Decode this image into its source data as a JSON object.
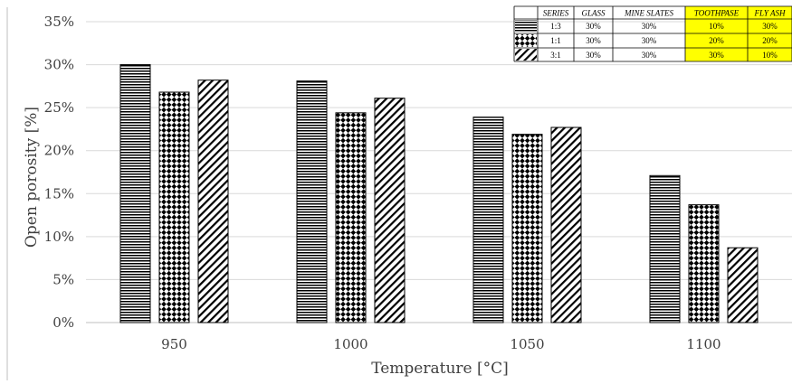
{
  "chart_data": {
    "type": "bar",
    "xlabel": "Temperature  [°C]",
    "ylabel": "Open porosity [%]",
    "ylim": [
      0,
      35
    ],
    "yticks": [
      "0%",
      "5%",
      "10%",
      "15%",
      "20%",
      "25%",
      "30%",
      "35%"
    ],
    "categories": [
      "950",
      "1000",
      "1050",
      "1100"
    ],
    "grid": true,
    "series": [
      {
        "name": "1:3",
        "pattern": "horizontal-lines",
        "values": [
          30.0,
          28.1,
          23.9,
          17.1
        ]
      },
      {
        "name": "1:1",
        "pattern": "diamond-checker",
        "values": [
          26.8,
          24.4,
          21.9,
          13.7
        ]
      },
      {
        "name": "3:1",
        "pattern": "diagonal-lines",
        "values": [
          28.2,
          26.1,
          22.7,
          8.7
        ]
      }
    ],
    "legend": {
      "placement": "top-right",
      "headers": [
        "SERIES",
        "GLASS",
        "MINE SLATES",
        "TOOTHPASE",
        "FLY ASH"
      ],
      "highlight_columns": [
        3,
        4
      ],
      "highlight_color": "#ffff00",
      "rows": [
        [
          "1:3",
          "30%",
          "30%",
          "10%",
          "30%"
        ],
        [
          "1:1",
          "30%",
          "30%",
          "20%",
          "20%"
        ],
        [
          "3:1",
          "30%",
          "30%",
          "30%",
          "10%"
        ]
      ]
    },
    "colors": {
      "bar_stroke": "#000000",
      "grid": "#d9d9d9",
      "text": "#404040"
    }
  }
}
